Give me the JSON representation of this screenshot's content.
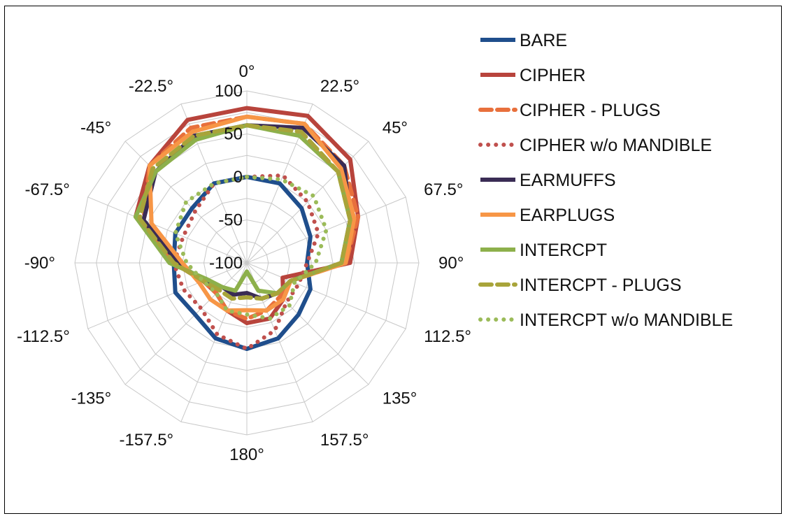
{
  "chart_data": {
    "type": "radar",
    "angles": [
      0,
      22.5,
      45,
      67.5,
      90,
      112.5,
      135,
      157.5,
      180,
      -157.5,
      -135,
      -112.5,
      -90,
      -67.5,
      -45,
      -22.5
    ],
    "angle_labels": [
      "0°",
      "22.5°",
      "45°",
      "67.5°",
      "90°",
      "112.5°",
      "135°",
      "157.5°",
      "180°",
      "-157.5°",
      "-135°",
      "-112.5°",
      "-90°",
      "-67.5°",
      "-45°",
      "-22.5°"
    ],
    "rlim": [
      -100,
      100
    ],
    "r_ticks": [
      -100,
      -50,
      0,
      50,
      100
    ],
    "r_tick_labels": [
      "-100",
      "-50",
      "0",
      "50",
      "100"
    ],
    "grid": true,
    "legend_position": "right",
    "series": [
      {
        "name": "BARE",
        "color": "#1f4e8c",
        "dash": "solid",
        "values": [
          0,
          0,
          -10,
          -20,
          -30,
          -20,
          -15,
          -5,
          0,
          -5,
          -15,
          -10,
          -15,
          -10,
          -10,
          0
        ]
      },
      {
        "name": "CIPHER",
        "color": "#b8443c",
        "dash": "solid",
        "values": [
          80,
          85,
          70,
          40,
          20,
          -55,
          -40,
          -30,
          -30,
          -40,
          -50,
          -45,
          -15,
          40,
          60,
          80
        ]
      },
      {
        "name": "CIPHER - PLUGS",
        "color": "#e8703c",
        "dash": "dashed",
        "values": [
          70,
          75,
          60,
          40,
          15,
          -45,
          -45,
          -40,
          -35,
          -40,
          -50,
          -45,
          -15,
          30,
          60,
          70
        ]
      },
      {
        "name": "CIPHER w/o MANDIBLE",
        "color": "#c0504d",
        "dash": "dotted",
        "values": [
          0,
          10,
          0,
          -10,
          -30,
          -35,
          -35,
          -15,
          0,
          -10,
          -25,
          -20,
          -15,
          -20,
          -15,
          0
        ]
      },
      {
        "name": "EARMUFFS",
        "color": "#3a2c55",
        "dash": "solid",
        "values": [
          60,
          70,
          60,
          30,
          10,
          -45,
          -50,
          -55,
          -65,
          -60,
          -60,
          -45,
          -20,
          30,
          50,
          60
        ]
      },
      {
        "name": "EARPLUGS",
        "color": "#f79646",
        "dash": "solid",
        "values": [
          70,
          75,
          55,
          35,
          15,
          -45,
          -40,
          -40,
          -45,
          -40,
          -40,
          -40,
          -25,
          20,
          60,
          65
        ]
      },
      {
        "name": "INTERCPT",
        "color": "#8db04b",
        "dash": "solid",
        "values": [
          60,
          60,
          50,
          30,
          10,
          -45,
          -50,
          -65,
          -90,
          -65,
          -60,
          -50,
          -10,
          40,
          50,
          55
        ]
      },
      {
        "name": "INTERCPT - PLUGS",
        "color": "#a8a43a",
        "dash": "dashed",
        "values": [
          60,
          65,
          50,
          30,
          10,
          -45,
          -50,
          -55,
          -60,
          -55,
          -55,
          -45,
          -15,
          35,
          55,
          60
        ]
      },
      {
        "name": "INTERCPT w/o MANDIBLE",
        "color": "#9bbb59",
        "dash": "dotted",
        "values": [
          0,
          5,
          10,
          0,
          -20,
          -40,
          -30,
          -30,
          -40,
          -40,
          -50,
          -45,
          -30,
          -10,
          0,
          0
        ]
      }
    ]
  }
}
